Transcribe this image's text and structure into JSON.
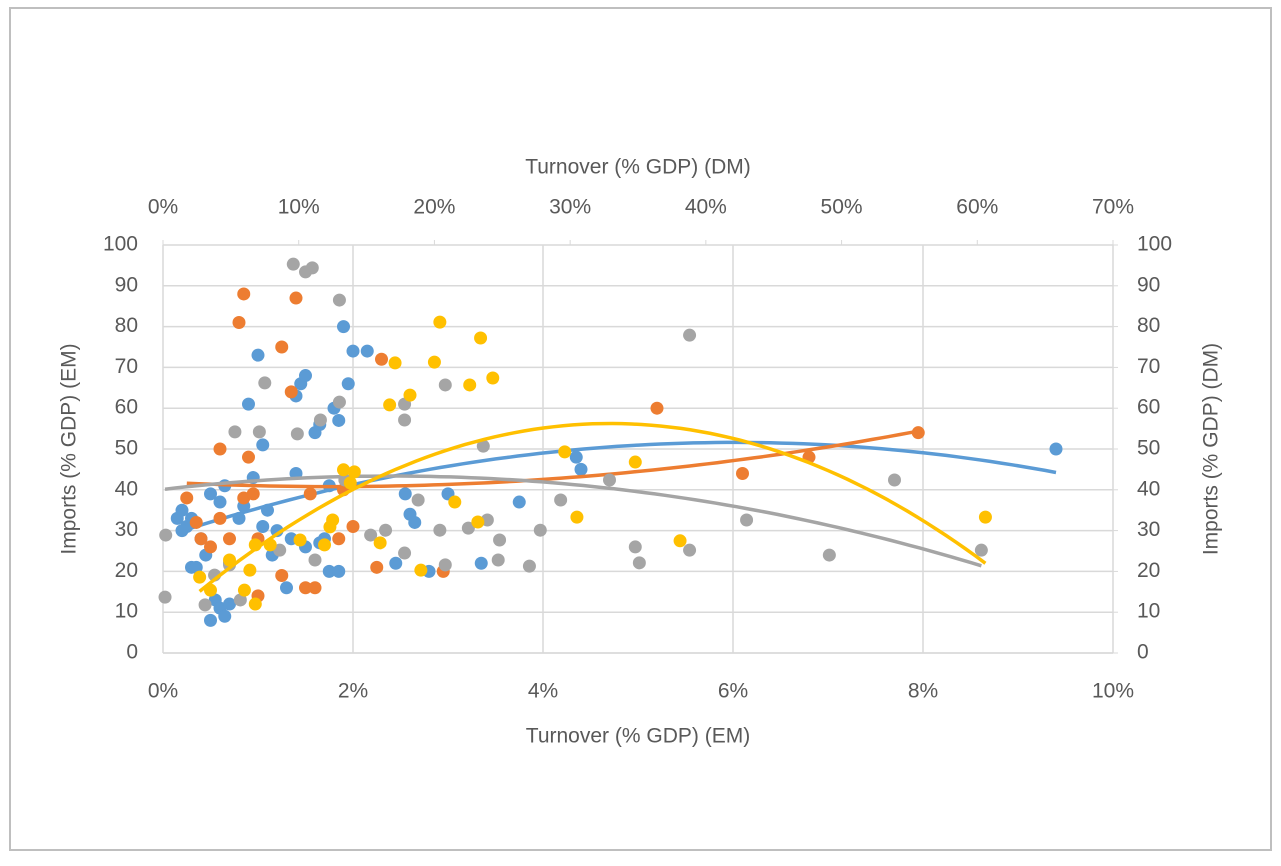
{
  "chart_data": {
    "type": "scatter",
    "x_label": "Turnover (% GDP) (EM)",
    "x2_label": "Turnover (% GDP) (DM)",
    "y_label": "Imports (% GDP) (EM)",
    "y2_label": "Imports (% GDP) (DM)",
    "xlim": [
      0,
      10
    ],
    "xticks": [
      {
        "value": 0,
        "label": "0%"
      },
      {
        "value": 2,
        "label": "2%"
      },
      {
        "value": 4,
        "label": "4%"
      },
      {
        "value": 6,
        "label": "6%"
      },
      {
        "value": 8,
        "label": "8%"
      },
      {
        "value": 10,
        "label": "10%"
      }
    ],
    "x2lim": [
      0,
      70
    ],
    "x2ticks": [
      {
        "value": 0,
        "label": "0%"
      },
      {
        "value": 10,
        "label": "10%"
      },
      {
        "value": 20,
        "label": "20%"
      },
      {
        "value": 30,
        "label": "30%"
      },
      {
        "value": 40,
        "label": "40%"
      },
      {
        "value": 50,
        "label": "50%"
      },
      {
        "value": 60,
        "label": "60%"
      },
      {
        "value": 70,
        "label": "70%"
      }
    ],
    "ylim": [
      0,
      100
    ],
    "yticks": [
      0,
      10,
      20,
      30,
      40,
      50,
      60,
      70,
      80,
      90,
      100
    ],
    "y2lim": [
      0,
      100
    ],
    "y2ticks": [
      0,
      10,
      20,
      30,
      40,
      50,
      60,
      70,
      80,
      90,
      100
    ],
    "grid": true,
    "trendline": "polynomial",
    "trendline_order": 2,
    "series": [
      {
        "color": "#5b9bd5",
        "x": [
          0.15,
          0.2,
          0.25,
          0.3,
          0.35,
          0.45,
          0.5,
          0.55,
          0.6,
          0.65,
          0.7,
          0.5,
          0.6,
          0.65,
          0.7,
          0.8,
          0.85,
          0.9,
          0.95,
          1.0,
          1.05,
          1.1,
          1.15,
          1.2,
          1.3,
          1.35,
          1.4,
          1.4,
          1.45,
          1.5,
          1.5,
          1.6,
          1.65,
          1.7,
          1.75,
          1.75,
          1.8,
          1.85,
          1.9,
          1.95,
          2.0,
          2.15,
          2.55,
          2.6,
          2.65,
          2.45,
          2.8,
          3.0,
          3.35,
          3.75,
          4.35,
          4.4,
          9.4,
          0.2,
          0.3,
          0.4,
          1.05,
          1.65,
          1.85
        ],
        "values": [
          33,
          35,
          31,
          21,
          21,
          24,
          8,
          13,
          11,
          9,
          12,
          39,
          37,
          41,
          22,
          33,
          36,
          61,
          43,
          73,
          51,
          35,
          24,
          30,
          16,
          28,
          44,
          63,
          66,
          68,
          26,
          54,
          56,
          28,
          20,
          41,
          60,
          57,
          80,
          66,
          74,
          74,
          39,
          34,
          32,
          22,
          20,
          39,
          22,
          37,
          48,
          45,
          50,
          30,
          33,
          28,
          31,
          27,
          20
        ]
      },
      {
        "color": "#ed7d31",
        "x": [
          0.25,
          0.35,
          0.4,
          0.6,
          0.6,
          0.8,
          0.85,
          0.85,
          0.9,
          0.95,
          1.0,
          1.0,
          1.25,
          1.25,
          1.35,
          1.4,
          1.5,
          1.55,
          1.6,
          1.85,
          1.9,
          2.0,
          2.3,
          2.25,
          2.95,
          5.2,
          6.1,
          6.8,
          7.95,
          0.7,
          0.5
        ],
        "values": [
          38,
          32,
          28,
          50,
          33,
          81,
          88,
          38,
          48,
          39,
          14,
          28,
          75,
          19,
          64,
          87,
          16,
          39,
          16,
          28,
          40,
          31,
          72,
          21,
          20,
          60,
          44,
          48,
          54,
          28,
          26
        ]
      },
      {
        "color": "#a5a5a5",
        "axis": "y2",
        "xaxis": "x2",
        "x": [
          0.15,
          0.2,
          3.1,
          3.8,
          4.9,
          5.3,
          5.7,
          7.1,
          7.5,
          8.6,
          9.6,
          9.9,
          10.5,
          11.0,
          11.2,
          11.6,
          13.0,
          13.0,
          13.4,
          15.3,
          16.4,
          17.8,
          17.8,
          17.8,
          18.8,
          20.8,
          20.4,
          20.8,
          22.5,
          23.6,
          23.9,
          24.8,
          24.7,
          27.8,
          27.0,
          29.3,
          32.9,
          34.8,
          35.1,
          38.8,
          38.8,
          43.0,
          49.1,
          53.9,
          60.3
        ],
        "values": [
          13.7,
          28.9,
          11.8,
          19.1,
          21.6,
          54.2,
          13.0,
          54.2,
          66.2,
          25.2,
          95.3,
          53.7,
          93.4,
          94.4,
          22.8,
          57.1,
          86.5,
          61.5,
          42.4,
          28.9,
          30.1,
          61.0,
          57.1,
          24.5,
          37.5,
          65.7,
          30.1,
          21.6,
          30.6,
          50.7,
          32.6,
          27.7,
          22.8,
          30.1,
          21.3,
          37.5,
          42.4,
          26.0,
          22.1,
          77.9,
          25.2,
          32.6,
          24.0,
          42.4,
          25.2
        ]
      },
      {
        "color": "#ffc000",
        "axis": "y2",
        "xaxis": "x2",
        "x": [
          2.7,
          3.5,
          4.9,
          6.0,
          6.4,
          6.8,
          6.8,
          7.9,
          10.1,
          12.3,
          11.9,
          12.5,
          13.3,
          13.8,
          14.1,
          16.0,
          16.7,
          17.1,
          18.2,
          19.0,
          20.0,
          20.4,
          21.5,
          22.6,
          23.2,
          23.4,
          24.3,
          29.6,
          30.5,
          38.1,
          34.8,
          60.6
        ],
        "values": [
          18.6,
          15.4,
          22.8,
          15.4,
          20.3,
          12.0,
          26.5,
          26.5,
          27.7,
          30.9,
          26.5,
          32.6,
          44.9,
          41.7,
          44.4,
          27.0,
          60.8,
          71.1,
          63.2,
          20.3,
          71.3,
          81.1,
          37.0,
          65.7,
          32.1,
          77.2,
          67.4,
          49.3,
          33.3,
          27.5,
          46.8,
          33.3
        ]
      }
    ]
  }
}
